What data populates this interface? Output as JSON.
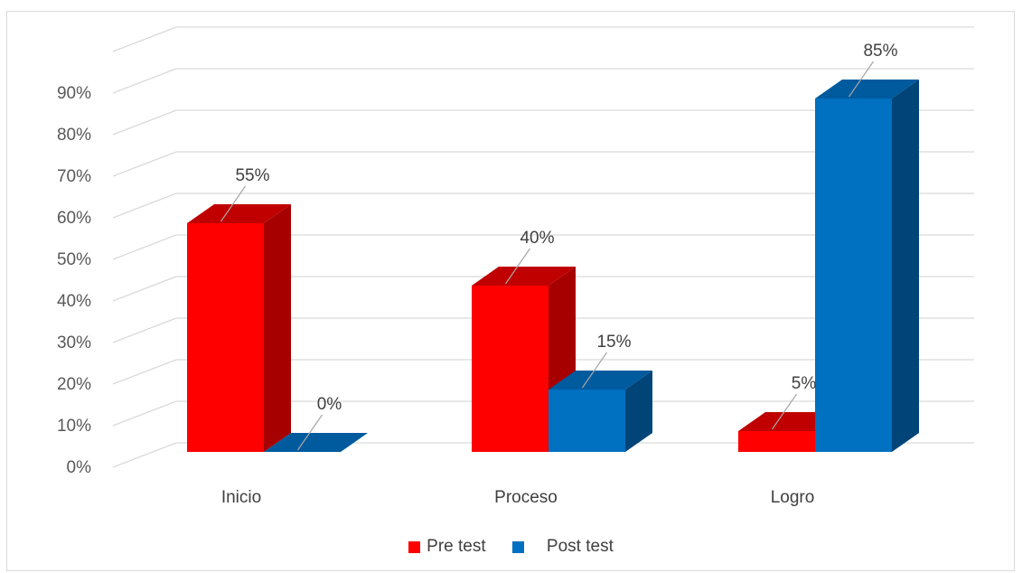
{
  "chart_data": {
    "type": "bar",
    "title": "",
    "xlabel": "",
    "ylabel": "",
    "categories": [
      "Inicio",
      "Proceso",
      "Logro"
    ],
    "series": [
      {
        "name": "Pre test",
        "values": [
          55,
          40,
          5
        ],
        "labels": [
          "55%",
          "40%",
          "5%"
        ]
      },
      {
        "name": "Post test",
        "values": [
          0,
          15,
          85
        ],
        "labels": [
          "0%",
          "15%",
          "85%"
        ]
      }
    ],
    "ylim": [
      0,
      90
    ],
    "yticks": [
      "0%",
      "10%",
      "20%",
      "30%",
      "40%",
      "50%",
      "60%",
      "70%",
      "80%",
      "90%"
    ],
    "grid": true,
    "legend_position": "bottom",
    "three_d": true,
    "colors": {
      "pre_front": "#ff0000",
      "pre_top": "#c00000",
      "pre_side": "#a60000",
      "post_front": "#0070c0",
      "post_top": "#005a9e",
      "post_side": "#004478",
      "grid": "#d9d9d9",
      "leader": "#a6a6a6"
    }
  }
}
